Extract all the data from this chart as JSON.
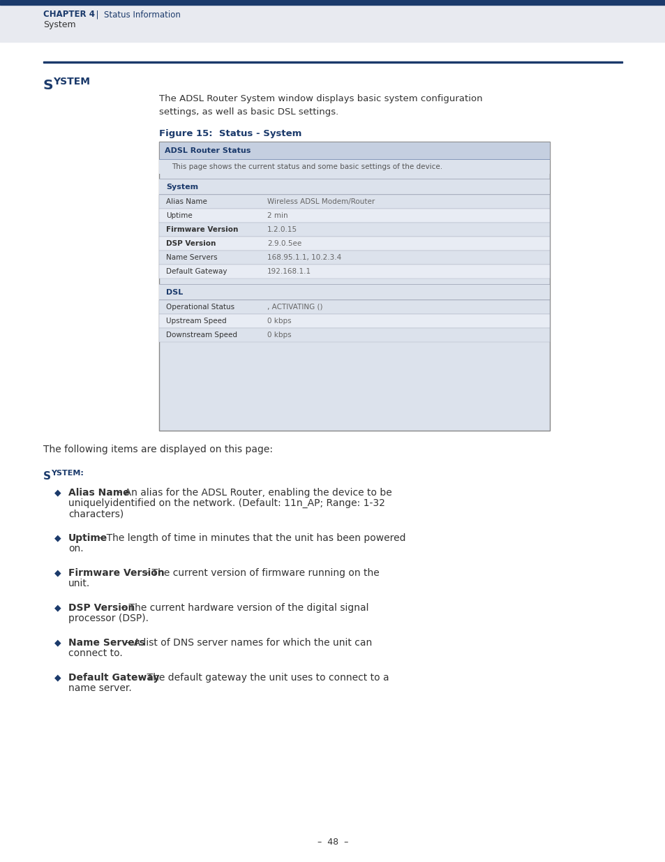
{
  "page_bg": "#ffffff",
  "header_bar_color": "#1b3a6b",
  "header_bg": "#e8eaf0",
  "chapter_text_bold": "Chapter 4",
  "chapter_text_rest": "  |  Status Information",
  "chapter_sub": "System",
  "section_title": "System",
  "section_line_color": "#1b3a6b",
  "intro_text": "The ADSL Router System window displays basic system configuration\nsettings, as well as basic DSL settings.",
  "figure_label": "Figure 15:  Status - System",
  "figure_label_color": "#1b3a6b",
  "box_border_color": "#888888",
  "box_bg": "#dce2ec",
  "box_header_bg": "#c5cfe0",
  "box_header_text": "ADSL Router Status",
  "box_header_color": "#1b3a6b",
  "box_sub_text": "This page shows the current status and some basic settings of the device.",
  "box_sub_color": "#555555",
  "section_system_label": "System",
  "system_fields": [
    [
      "Alias Name",
      "Wireless ADSL Modem/Router",
      false
    ],
    [
      "Uptime",
      "2 min",
      false
    ],
    [
      "Firmware Version",
      "1.2.0.15",
      true
    ],
    [
      "DSP Version",
      "2.9.0.5ee",
      true
    ],
    [
      "Name Servers",
      "168.95.1.1, 10.2.3.4",
      false
    ],
    [
      "Default Gateway",
      "192.168.1.1",
      false
    ]
  ],
  "section_dsl_label": "DSL",
  "dsl_fields": [
    [
      "Operational Status",
      ", ACTIVATING ()",
      false
    ],
    [
      "Upstream Speed",
      "0 kbps",
      false
    ],
    [
      "Downstream Speed",
      "0 kbps",
      false
    ]
  ],
  "following_text": "The following items are displayed on this page:",
  "system_section_label": "System:",
  "system_section_color": "#1b3a6b",
  "bullets": [
    [
      "Alias Name",
      " – An alias for the ADSL Router, enabling the device to be\nuniquelyidentified on the network. (Default: 11n_AP; Range: 1-32\ncharacters)"
    ],
    [
      "Uptime",
      " – The length of time in minutes that the unit has been powered\non."
    ],
    [
      "Firmware Version",
      " – The current version of firmware running on the\nunit."
    ],
    [
      "DSP Version",
      " – The current hardware version of the digital signal\nprocessor (DSP)."
    ],
    [
      "Name Servers",
      " – A list of DNS server names for which the unit can\nconnect to."
    ],
    [
      "Default Gateway",
      " – The default gateway the unit uses to connect to a\nname server."
    ]
  ],
  "page_number": "–  48  –",
  "text_color": "#333333",
  "value_color": "#666666",
  "red_label_color": "#cc0000",
  "dark_blue": "#1b3a6b",
  "field_row_bg1": "#dce2ec",
  "field_row_bg2": "#e8ecf4",
  "section_row_bg": "#d0d8e8",
  "divider_color": "#aab0c0"
}
